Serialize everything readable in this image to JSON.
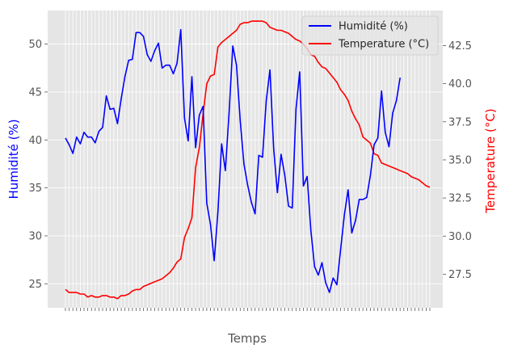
{
  "chart_data": {
    "type": "line",
    "xlabel": "Temps",
    "ylabel_left": "Humidité (%)",
    "ylabel_right": "Temperature (°C)",
    "ylim_left": [
      22.5,
      53.5
    ],
    "ylim_right": [
      25.3,
      44.8
    ],
    "yticks_left": [
      25,
      30,
      35,
      40,
      45,
      50
    ],
    "yticks_right": [
      27.5,
      30.0,
      32.5,
      35.0,
      37.5,
      40.0,
      42.5
    ],
    "grid": true,
    "legend_position": "top-right",
    "series": [
      {
        "name": "Humidité (%)",
        "axis": "left",
        "color": "#0000ff",
        "values": [
          40.2,
          39.5,
          38.6,
          40.3,
          39.6,
          40.8,
          40.3,
          40.3,
          39.7,
          40.9,
          41.3,
          44.6,
          43.2,
          43.3,
          41.7,
          44.3,
          46.6,
          48.3,
          48.4,
          51.2,
          51.2,
          50.8,
          48.9,
          48.2,
          49.3,
          50.1,
          47.5,
          47.8,
          47.8,
          46.9,
          48.0,
          51.5,
          42.3,
          39.9,
          46.6,
          39.2,
          42.6,
          43.5,
          33.4,
          31.2,
          27.4,
          32.5,
          39.6,
          36.8,
          42.8,
          49.8,
          47.8,
          42.0,
          37.5,
          35.3,
          33.5,
          32.3,
          38.4,
          38.2,
          44.1,
          47.3,
          39.1,
          34.5,
          38.5,
          36.3,
          33.1,
          32.9,
          43.2,
          47.1,
          35.2,
          36.2,
          30.6,
          26.8,
          25.9,
          27.2,
          25.1,
          24.1,
          25.6,
          24.9,
          28.6,
          32.2,
          34.8,
          30.3,
          31.6,
          33.8,
          33.8,
          34.0,
          36.3,
          39.5,
          40.2,
          45.1,
          40.8,
          39.3,
          42.8,
          44.1,
          46.5
        ]
      },
      {
        "name": "Temperature (°C)",
        "axis": "right",
        "color": "#ff0000",
        "values": [
          26.5,
          26.3,
          26.3,
          26.3,
          26.2,
          26.2,
          26.0,
          26.1,
          26.0,
          26.0,
          26.1,
          26.1,
          26.0,
          26.0,
          25.9,
          26.1,
          26.1,
          26.2,
          26.4,
          26.5,
          26.5,
          26.7,
          26.8,
          26.9,
          27.0,
          27.1,
          27.2,
          27.4,
          27.6,
          27.9,
          28.3,
          28.5,
          29.9,
          30.5,
          31.2,
          34.5,
          35.8,
          38.0,
          40.0,
          40.5,
          40.6,
          42.4,
          42.7,
          42.9,
          43.1,
          43.3,
          43.5,
          43.9,
          44.0,
          44.0,
          44.1,
          44.1,
          44.1,
          44.1,
          44.0,
          43.7,
          43.6,
          43.5,
          43.5,
          43.4,
          43.3,
          43.1,
          42.9,
          42.8,
          42.6,
          42.3,
          41.9,
          41.8,
          41.4,
          41.1,
          41.0,
          40.7,
          40.4,
          40.1,
          39.6,
          39.3,
          38.9,
          38.2,
          37.7,
          37.3,
          36.5,
          36.3,
          36.1,
          35.4,
          35.3,
          34.8,
          34.7,
          34.6,
          34.5,
          34.4,
          34.3,
          34.2,
          34.1,
          33.9,
          33.8,
          33.7,
          33.5,
          33.3,
          33.2
        ]
      }
    ]
  }
}
